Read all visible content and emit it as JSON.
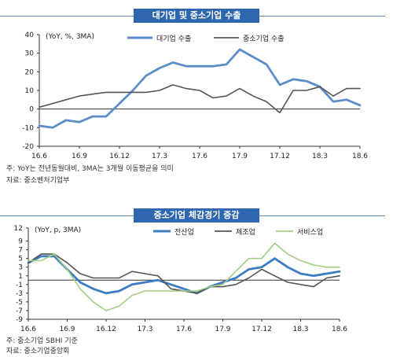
{
  "chart_data": [
    {
      "type": "line",
      "title": "대기업 및 중소기업 수출",
      "unit_label": "(YoY, %, 3MA)",
      "x_ticks": [
        "16.6",
        "16.9",
        "16.12",
        "17.3",
        "17.6",
        "17.9",
        "17.12",
        "18.3",
        "18.6"
      ],
      "ylim": [
        -20,
        40
      ],
      "y_ticks": [
        -20,
        -10,
        0,
        10,
        20,
        30,
        40
      ],
      "legend_position": "top",
      "x": [
        "16.6",
        "16.7",
        "16.8",
        "16.9",
        "16.10",
        "16.11",
        "16.12",
        "17.1",
        "17.2",
        "17.3",
        "17.4",
        "17.5",
        "17.6",
        "17.7",
        "17.8",
        "17.9",
        "17.10",
        "17.11",
        "17.12",
        "18.1",
        "18.2",
        "18.3",
        "18.4",
        "18.5",
        "18.6"
      ],
      "series": [
        {
          "name": "대기업 수출",
          "color": "#5b8ec9",
          "values": [
            -9,
            -10,
            -6,
            -7,
            -4,
            -4,
            3,
            10,
            18,
            22,
            25,
            23,
            23,
            23,
            24,
            32,
            28,
            24,
            13,
            16,
            15,
            12,
            4,
            5,
            2
          ]
        },
        {
          "name": "중소기업 수출",
          "color": "#555555",
          "values": [
            1,
            3,
            5,
            7,
            8,
            9,
            9,
            9,
            9,
            10,
            13,
            11,
            10,
            6,
            7,
            11,
            7,
            4,
            -2,
            10,
            10,
            12,
            7,
            11,
            11
          ]
        }
      ],
      "notes": [
        "주: YoY는 전년동월대비, 3MA는 3개월 이동평균을 의미",
        "자료: 중소벤처기업부"
      ]
    },
    {
      "type": "line",
      "title": "중소기업 체감경기 증감",
      "unit_label": "(YoY, p, 3MA)",
      "x_ticks": [
        "16.6",
        "16.9",
        "16.12",
        "17.3",
        "17.6",
        "17.9",
        "17.12",
        "18.3",
        "18.6"
      ],
      "ylim": [
        -9,
        12
      ],
      "y_ticks": [
        -9,
        -7,
        -5,
        -3,
        -1,
        1,
        3,
        5,
        7,
        9,
        12
      ],
      "legend_position": "top",
      "x": [
        "16.6",
        "16.7",
        "16.8",
        "16.9",
        "16.10",
        "16.11",
        "16.12",
        "17.1",
        "17.2",
        "17.3",
        "17.4",
        "17.5",
        "17.6",
        "17.7",
        "17.8",
        "17.9",
        "17.10",
        "17.11",
        "17.12",
        "18.1",
        "18.2",
        "18.3",
        "18.4",
        "18.5",
        "18.6"
      ],
      "series": [
        {
          "name": "전산업",
          "color": "#3c7cc3",
          "values": [
            4,
            5.5,
            5.5,
            2.5,
            -0.5,
            -2,
            -3,
            -2.5,
            -1,
            -0.5,
            0,
            -1,
            -2,
            -3,
            -1.5,
            -0.5,
            0.5,
            2.5,
            3,
            5,
            3,
            1.5,
            1,
            1.5,
            2
          ]
        },
        {
          "name": "제조업",
          "color": "#555555",
          "values": [
            4,
            6,
            6,
            4,
            1.5,
            0.5,
            0.5,
            0.5,
            2,
            1.5,
            1,
            -2,
            -2.5,
            -3,
            -1.5,
            -1.5,
            -1,
            0.5,
            2.5,
            1,
            -0.5,
            -1,
            -1.5,
            0.5,
            1
          ]
        },
        {
          "name": "서비스업",
          "color": "#a2cf82",
          "values": [
            4.5,
            4.5,
            6,
            2.5,
            -2,
            -5,
            -7,
            -6,
            -3.5,
            -2.5,
            -2.5,
            -2.5,
            -2.5,
            -2.5,
            -1.5,
            -1,
            2,
            5,
            5,
            8.5,
            6,
            4.5,
            3.5,
            3,
            3
          ]
        }
      ],
      "notes": [
        "주: 중소기업 SBHI 기준",
        "자료: 중소기업중앙회"
      ]
    }
  ]
}
